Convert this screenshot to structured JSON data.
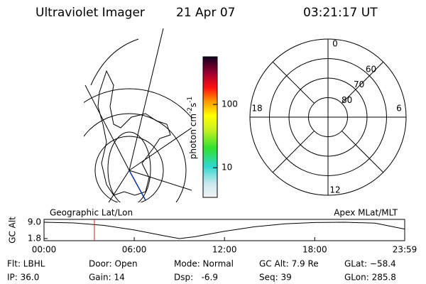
{
  "header": {
    "title": "Ultraviolet Imager",
    "date": "21 Apr 07",
    "time": "03:21:17 UT"
  },
  "colorbar": {
    "label": "photon cm",
    "exp1": "-2",
    "unit2": "s",
    "exp2": "-1",
    "log": true,
    "clim": [
      3.4,
      565
    ],
    "ticks": [
      10,
      100
    ]
  },
  "geo_map": {
    "label": "Geographic Lat/Lon"
  },
  "polar_map": {
    "label": "Apex MLat/MLT",
    "lat_min": 50,
    "lat_rings": [
      80,
      70,
      60
    ],
    "mlt_labels": [
      12,
      18,
      6,
      0
    ]
  },
  "altitude": {
    "ylabel": "GC Alt",
    "ylim": [
      1.8,
      9.0
    ],
    "yticks": [
      {
        "value": 9.0,
        "label": "9.0"
      },
      {
        "value": 1.8,
        "label": "1.8"
      }
    ],
    "xlim": [
      0,
      23.98
    ],
    "xticks": [
      {
        "value": 0,
        "label": "00:00"
      },
      {
        "value": 6,
        "label": "06:00"
      },
      {
        "value": 12,
        "label": "12:00"
      },
      {
        "value": 18,
        "label": "18:00"
      },
      {
        "value": 23.98,
        "label": "23:59"
      }
    ],
    "x": [
      0,
      2,
      4,
      6,
      8,
      9,
      10,
      12,
      14,
      16,
      18,
      20,
      22,
      23.98
    ],
    "values": [
      9.0,
      8.7,
      7.6,
      5.6,
      3.0,
      1.8,
      2.6,
      5.0,
      7.0,
      8.3,
      8.9,
      9.0,
      8.6,
      6.0
    ],
    "current_time": 3.35
  },
  "footer": {
    "rows": [
      [
        "Flt: LBHL",
        "Door: Open",
        "Mode: Normal",
        "GC Alt: 7.9 Re",
        "GLat: −58.4"
      ],
      [
        "IP: 36.0",
        "Gain: 14",
        "Dsp:   -6.9",
        "Seq: 39",
        "GLon: 285.8"
      ]
    ]
  }
}
